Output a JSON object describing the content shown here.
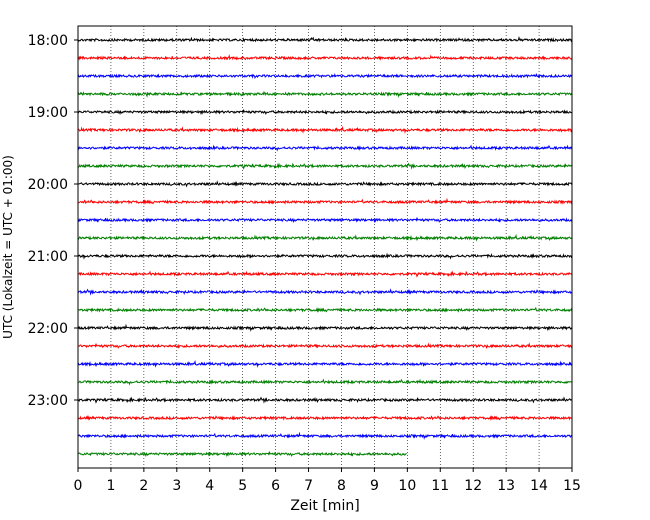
{
  "chart_data": {
    "type": "line",
    "title": "",
    "xlabel": "Zeit  [min]",
    "ylabel": "UTC (Lokalzeit = UTC + 01:00)",
    "xlim": [
      0,
      15
    ],
    "x_ticks": [
      "0",
      "1",
      "2",
      "3",
      "4",
      "5",
      "6",
      "7",
      "8",
      "9",
      "10",
      "11",
      "12",
      "13",
      "14",
      "15"
    ],
    "y_ticks": [
      "18:00",
      "19:00",
      "20:00",
      "21:00",
      "22:00",
      "23:00"
    ],
    "grid": "vertical dotted",
    "trace_interval_min": 15,
    "trace_colors": [
      "#000000",
      "#ff0000",
      "#0000ff",
      "#008000"
    ],
    "series": [
      {
        "start": "18:00",
        "end_min": 15
      },
      {
        "start": "18:15",
        "end_min": 15
      },
      {
        "start": "18:30",
        "end_min": 15
      },
      {
        "start": "18:45",
        "end_min": 15
      },
      {
        "start": "19:00",
        "end_min": 15
      },
      {
        "start": "19:15",
        "end_min": 15
      },
      {
        "start": "19:30",
        "end_min": 15
      },
      {
        "start": "19:45",
        "end_min": 15
      },
      {
        "start": "20:00",
        "end_min": 15
      },
      {
        "start": "20:15",
        "end_min": 15
      },
      {
        "start": "20:30",
        "end_min": 15
      },
      {
        "start": "20:45",
        "end_min": 15
      },
      {
        "start": "21:00",
        "end_min": 15
      },
      {
        "start": "21:15",
        "end_min": 15
      },
      {
        "start": "21:30",
        "end_min": 15
      },
      {
        "start": "21:45",
        "end_min": 15
      },
      {
        "start": "22:00",
        "end_min": 15
      },
      {
        "start": "22:15",
        "end_min": 15
      },
      {
        "start": "22:30",
        "end_min": 15
      },
      {
        "start": "22:45",
        "end_min": 15
      },
      {
        "start": "23:00",
        "end_min": 15
      },
      {
        "start": "23:15",
        "end_min": 15
      },
      {
        "start": "23:30",
        "end_min": 15
      },
      {
        "start": "23:45",
        "end_min": 10
      }
    ]
  }
}
